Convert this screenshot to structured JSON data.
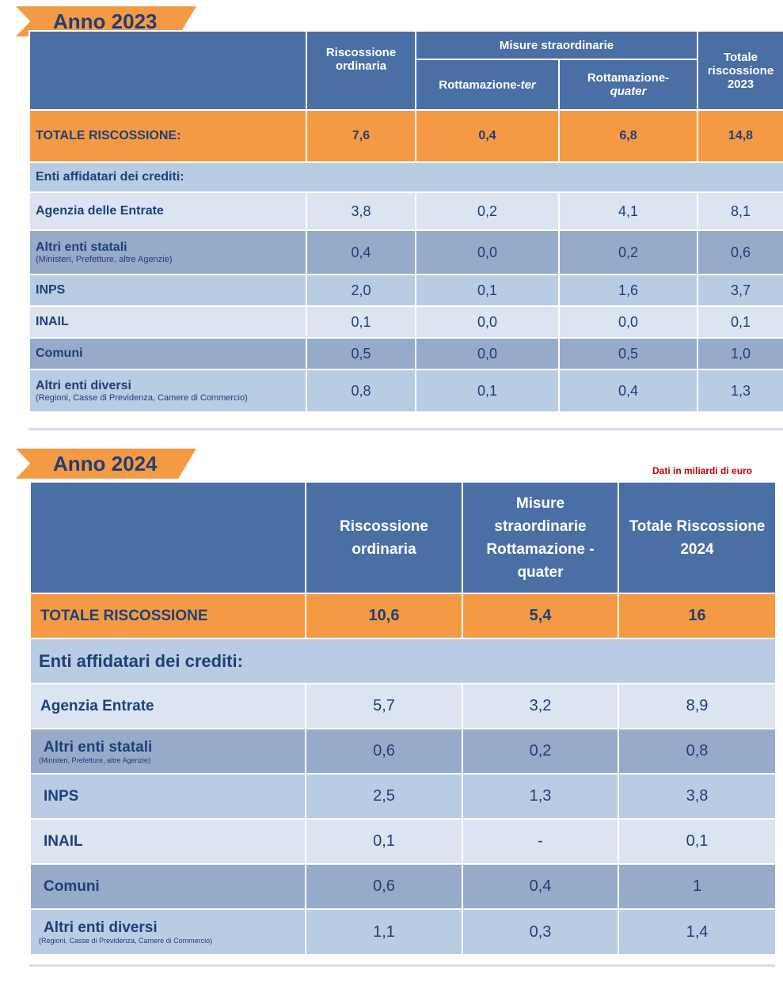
{
  "y2023": {
    "tag": "Anno 2023",
    "headers": {
      "ordinaria": "Riscossione ordinaria",
      "misure": "Misure straordinarie",
      "ter_prefix": "Rottamazione-",
      "ter_em": "ter",
      "quater_prefix": "Rottamazione-",
      "quater_em": "quater",
      "totale": "Totale riscossione 2023"
    },
    "total_row": {
      "label": "TOTALE RISCOSSIONE:",
      "values": [
        "7,6",
        "0,4",
        "6,8",
        "14,8"
      ]
    },
    "section_label": "Enti affidatari dei crediti:",
    "rows": [
      {
        "label": "Agenzia delle Entrate",
        "sub": "",
        "values": [
          "3,8",
          "0,2",
          "4,1",
          "8,1"
        ]
      },
      {
        "label": "Altri enti statali",
        "sub": "(Ministeri, Prefetture, altre Agenzie)",
        "values": [
          "0,4",
          "0,0",
          "0,2",
          "0,6"
        ]
      },
      {
        "label": "INPS",
        "sub": "",
        "values": [
          "2,0",
          "0,1",
          "1,6",
          "3,7"
        ]
      },
      {
        "label": "INAIL",
        "sub": "",
        "values": [
          "0,1",
          "0,0",
          "0,0",
          "0,1"
        ]
      },
      {
        "label": "Comuni",
        "sub": "",
        "values": [
          "0,5",
          "0,0",
          "0,5",
          "1,0"
        ]
      },
      {
        "label": "Altri enti diversi",
        "sub": "(Regioni, Casse di Previdenza, Camere di Commercio)",
        "values": [
          "0,8",
          "0,1",
          "0,4",
          "1,3"
        ]
      }
    ]
  },
  "y2024": {
    "tag": "Anno 2024",
    "note": "Dati in miliardi di euro",
    "headers": {
      "ordinaria": "Riscossione ordinaria",
      "misure": "Misure straordinarie Rottamazione - quater",
      "totale": "Totale Riscossione 2024"
    },
    "total_row": {
      "label": "TOTALE RISCOSSIONE",
      "values": [
        "10,6",
        "5,4",
        "16"
      ]
    },
    "section_label": "Enti affidatari dei crediti:",
    "rows": [
      {
        "label": "Agenzia Entrate",
        "sub": "",
        "values": [
          "5,7",
          "3,2",
          "8,9"
        ]
      },
      {
        "label": "Altri enti statali",
        "sub": "(Ministeri, Prefetture, altre Agenzie)",
        "values": [
          "0,6",
          "0,2",
          "0,8"
        ]
      },
      {
        "label": "INPS",
        "sub": "",
        "values": [
          "2,5",
          "1,3",
          "3,8"
        ]
      },
      {
        "label": "INAIL",
        "sub": "",
        "values": [
          "0,1",
          "-",
          "0,1"
        ]
      },
      {
        "label": "Comuni",
        "sub": "",
        "values": [
          "0,6",
          "0,4",
          "1"
        ]
      },
      {
        "label": "Altri enti diversi",
        "sub": "(Regioni, Casse di Previdenza, Camere di Commercio)",
        "values": [
          "1,1",
          "0,3",
          "1,4"
        ]
      }
    ]
  },
  "colors": {
    "header_blue": "#4a6fa5",
    "orange": "#f59a44",
    "text_navy": "#1f3f78",
    "row_light": "#dbe4f0",
    "row_mid": "#b8cde3",
    "row_dark": "#96abc9",
    "note_red": "#c00000"
  }
}
